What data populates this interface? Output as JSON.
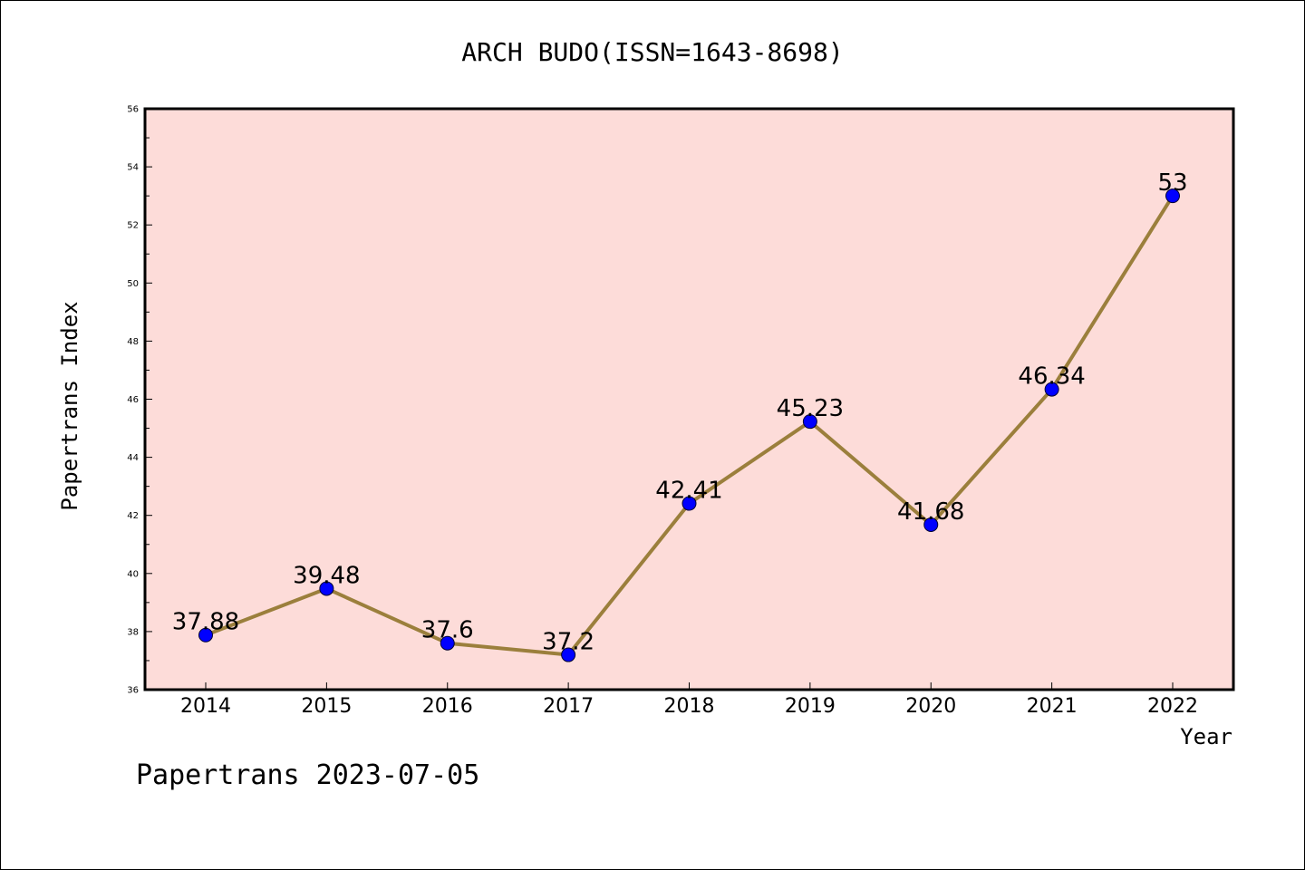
{
  "chart_data": {
    "type": "line",
    "title": "ARCH BUDO(ISSN=1643-8698)",
    "xlabel": "Year",
    "ylabel": "Papertrans Index",
    "categories": [
      "2014",
      "2015",
      "2016",
      "2017",
      "2018",
      "2019",
      "2020",
      "2021",
      "2022"
    ],
    "series": [
      {
        "values": [
          37.88,
          39.48,
          37.6,
          37.2,
          42.41,
          45.23,
          41.68,
          46.34,
          53
        ],
        "labels": [
          "37.88",
          "39.48",
          "37.6",
          "37.2",
          "42.41",
          "45.23",
          "41.68",
          "46.34",
          "53"
        ]
      }
    ],
    "ylim": [
      36,
      56
    ],
    "yticks": [
      "36",
      "38",
      "40",
      "42",
      "44",
      "46",
      "48",
      "50",
      "52",
      "54",
      "56"
    ],
    "grid": false,
    "plot_background": "#fddcd9",
    "line_color": "#9b7f3c",
    "marker_color": "#0000ff"
  },
  "footer": {
    "text": "Papertrans 2023-07-05"
  }
}
